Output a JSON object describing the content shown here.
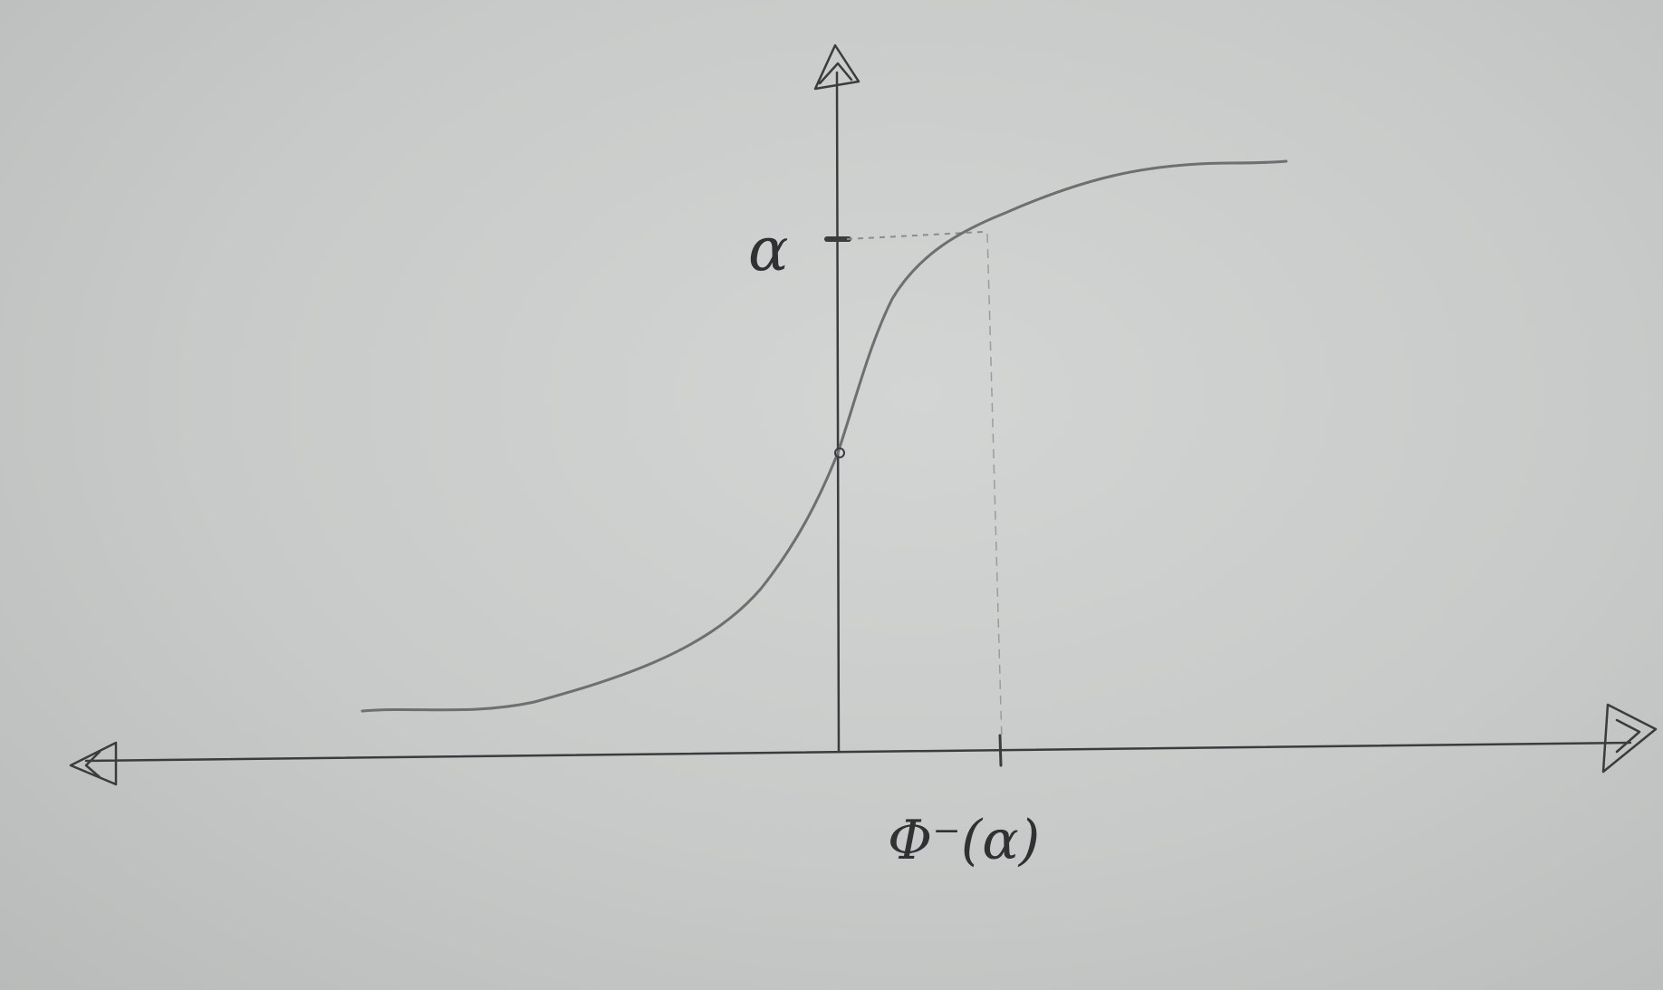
{
  "diagram": {
    "type": "cdf-sketch",
    "y_marker_label": "α",
    "x_marker_label": "Φ⁻(α)",
    "colors": {
      "paper": "#c9cbca",
      "ink": "#3a3c3d",
      "curve": "#6d6f70",
      "guide": "#8a8c8d"
    }
  }
}
